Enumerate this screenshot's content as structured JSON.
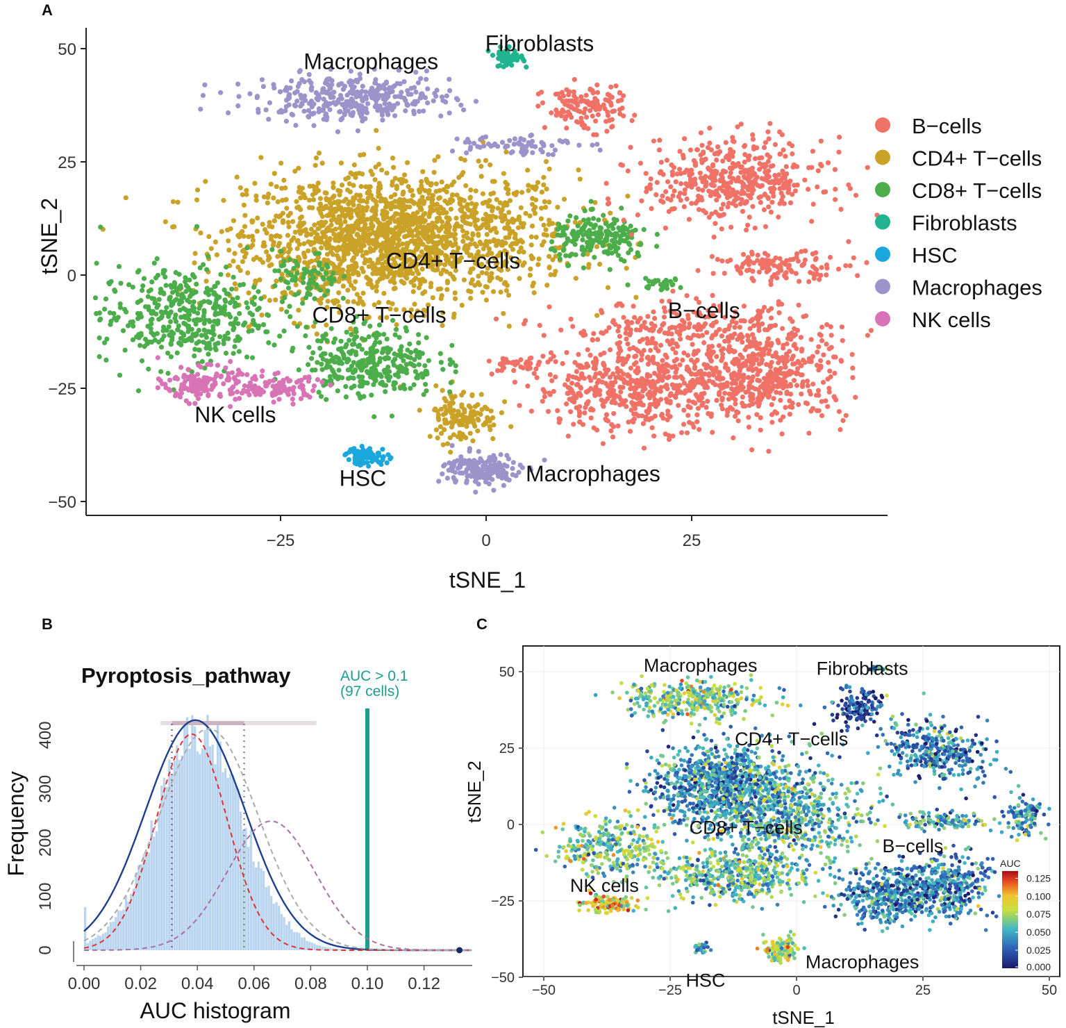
{
  "panels": {
    "a_letter": "A",
    "b_letter": "B",
    "c_letter": "C"
  },
  "colors": {
    "b_cells": "#f07266",
    "cd4": "#c9a227",
    "cd8": "#4cad4b",
    "fibro": "#1fb38f",
    "hsc": "#1aa7dc",
    "macro": "#9b93c9",
    "nk": "#d873b5",
    "threshold": "#1a9e8f",
    "hist_bar": "#b9d4ee",
    "fit_blue": "#1b3f8f",
    "fit_red": "#e03030"
  },
  "chart_data": [
    {
      "panel": "A",
      "type": "scatter",
      "xlabel": "tSNE_1",
      "ylabel": "tSNE_2",
      "xlim": [
        -50,
        50
      ],
      "ylim": [
        -53,
        55
      ],
      "xticks": [
        -25,
        0,
        25
      ],
      "xtick_labels": [
        "−25",
        "0",
        "25"
      ],
      "yticks": [
        50,
        25,
        0,
        -25,
        -50
      ],
      "ytick_labels": [
        "50",
        "25",
        "0",
        "−25",
        "−50"
      ],
      "legend": [
        "B−cells",
        "CD4+ T−cells",
        "CD8+ T−cells",
        "Fibroblasts",
        "HSC",
        "Macrophages",
        "NK cells"
      ],
      "cluster_labels": [
        {
          "text": "Macrophages",
          "x": -14,
          "y": 47
        },
        {
          "text": "Fibroblasts",
          "x": 6.5,
          "y": 51
        },
        {
          "text": "CD4+ T−cells",
          "x": -4,
          "y": 3
        },
        {
          "text": "CD8+ T−cells",
          "x": -13,
          "y": -9
        },
        {
          "text": "B−cells",
          "x": 26.5,
          "y": -8
        },
        {
          "text": "NK cells",
          "x": -30.5,
          "y": -31
        },
        {
          "text": "HSC",
          "x": -15,
          "y": -45
        },
        {
          "text": "Macrophages",
          "x": 13,
          "y": -44
        }
      ],
      "clusters": [
        {
          "type": "CD4+ T−cells",
          "x": -9,
          "y": 9,
          "sx": 10,
          "sy": 7,
          "n": 1300
        },
        {
          "type": "CD4+ T−cells",
          "x": -17,
          "y": 6,
          "sx": 7,
          "sy": 8,
          "n": 500
        },
        {
          "type": "CD4+ T−cells",
          "x": -3,
          "y": -31,
          "sx": 2.2,
          "sy": 3,
          "n": 130
        },
        {
          "type": "CD8+ T−cells",
          "x": -37,
          "y": -9,
          "sx": 5,
          "sy": 5.5,
          "n": 420
        },
        {
          "type": "CD8+ T−cells",
          "x": -14,
          "y": -19,
          "sx": 4,
          "sy": 4,
          "n": 320
        },
        {
          "type": "CD8+ T−cells",
          "x": -22,
          "y": -1,
          "sx": 2,
          "sy": 3,
          "n": 80
        },
        {
          "type": "CD8+ T−cells",
          "x": 14,
          "y": 8,
          "sx": 3,
          "sy": 2.5,
          "n": 200
        },
        {
          "type": "CD8+ T−cells",
          "x": 21,
          "y": -2,
          "sx": 1.5,
          "sy": 0.6,
          "n": 30
        },
        {
          "type": "B−cells",
          "x": 30,
          "y": 21,
          "sx": 5.5,
          "sy": 4.5,
          "n": 450
        },
        {
          "type": "B−cells",
          "x": 12,
          "y": 37,
          "sx": 2.5,
          "sy": 2.5,
          "n": 130
        },
        {
          "type": "B−cells",
          "x": 36,
          "y": 2,
          "sx": 4,
          "sy": 1.5,
          "n": 120
        },
        {
          "type": "B−cells",
          "x": 18,
          "y": -25,
          "sx": 6,
          "sy": 4.5,
          "n": 500
        },
        {
          "type": "B−cells",
          "x": 34,
          "y": -22,
          "sx": 5,
          "sy": 5,
          "n": 450
        },
        {
          "type": "B−cells",
          "x": 25,
          "y": -12,
          "sx": 8,
          "sy": 3,
          "n": 250
        },
        {
          "type": "B−cells",
          "x": 4,
          "y": -20,
          "sx": 2,
          "sy": 1,
          "n": 40
        },
        {
          "type": "Fibroblasts",
          "x": 2.5,
          "y": 48,
          "sx": 1,
          "sy": 1,
          "n": 50
        },
        {
          "type": "HSC",
          "x": -14.5,
          "y": -40,
          "sx": 1.3,
          "sy": 1,
          "n": 80
        },
        {
          "type": "Macrophages",
          "x": -16,
          "y": 39,
          "sx": 6,
          "sy": 2.5,
          "n": 360
        },
        {
          "type": "Macrophages",
          "x": 3,
          "y": 29,
          "sx": 4,
          "sy": 1.2,
          "n": 70
        },
        {
          "type": "Macrophages",
          "x": -0.5,
          "y": -43,
          "sx": 2.3,
          "sy": 1.8,
          "n": 170
        },
        {
          "type": "NK cells",
          "x": -34.5,
          "y": -24,
          "sx": 2.3,
          "sy": 1.8,
          "n": 140
        },
        {
          "type": "NK cells",
          "x": -26,
          "y": -25,
          "sx": 3,
          "sy": 1.5,
          "n": 100
        }
      ]
    },
    {
      "panel": "B",
      "type": "bar",
      "title": "Pyroptosis_pathway",
      "xlabel": "AUC histogram",
      "ylabel": "Frequency",
      "xlim": [
        0,
        0.135
      ],
      "ylim": [
        0,
        450
      ],
      "xticks": [
        0,
        0.02,
        0.04,
        0.06,
        0.08,
        0.1,
        0.12
      ],
      "xtick_labels": [
        "0.00",
        "0.02",
        "0.04",
        "0.06",
        "0.08",
        "0.10",
        "0.12"
      ],
      "yticks": [
        0,
        100,
        200,
        300,
        400
      ],
      "ytick_labels": [
        "0",
        "100",
        "200",
        "300",
        "400"
      ],
      "threshold": 0.1,
      "threshold_label": "AUC > 0.1",
      "threshold_cells": "(97 cells)",
      "vertical_lines": [
        0.031,
        0.0565
      ],
      "max_point": 0.1325,
      "fits": [
        {
          "name": "total",
          "mean": 0.0393,
          "sd": 0.0176,
          "amp": 428,
          "style": "solid",
          "color": "#1b3f8f"
        },
        {
          "name": "component-1",
          "mean": 0.038,
          "sd": 0.0125,
          "amp": 402,
          "style": "dashed",
          "color": "#e03030"
        },
        {
          "name": "component-2",
          "mean": 0.066,
          "sd": 0.0155,
          "amp": 240,
          "style": "dashed",
          "color": "#a86fa3"
        },
        {
          "name": "alternative",
          "mean": 0.044,
          "sd": 0.0175,
          "amp": 412,
          "style": "dashed",
          "color": "#aaaaaa"
        }
      ],
      "histogram": {
        "bin_width": 0.0009,
        "mean": 0.0405,
        "sd": 0.0152,
        "peak": 420,
        "spike_at_zero": 80
      }
    },
    {
      "panel": "C",
      "type": "scatter",
      "xlabel": "tSNE_1",
      "ylabel": "tSNE_2",
      "xlim": [
        -55,
        52
      ],
      "ylim": [
        -52,
        57
      ],
      "xticks": [
        -50,
        -25,
        0,
        25,
        50
      ],
      "xtick_labels": [
        "−50",
        "−25",
        "0",
        "25",
        "50"
      ],
      "yticks": [
        50,
        25,
        0,
        -25,
        -50
      ],
      "ytick_labels": [
        "50",
        "25",
        "0",
        "−25",
        "−50"
      ],
      "colorbar_title": "AUC",
      "colorbar_ticks": [
        0.125,
        0.1,
        0.075,
        0.05,
        0.025,
        0
      ],
      "colorbar_labels": [
        "0.125",
        "0.100",
        "0.075",
        "0.050",
        "0.025",
        "0.000"
      ],
      "cluster_labels": [
        {
          "text": "Macrophages",
          "x": -19,
          "y": 52
        },
        {
          "text": "Fibroblasts",
          "x": 13,
          "y": 51
        },
        {
          "text": "CD4+ T−cells",
          "x": -1,
          "y": 28
        },
        {
          "text": "CD8+ T−cells",
          "x": -10,
          "y": -1
        },
        {
          "text": "B−cells",
          "x": 23,
          "y": -7
        },
        {
          "text": "NK cells",
          "x": -38,
          "y": -20
        },
        {
          "text": "HSC",
          "x": -18,
          "y": -51
        },
        {
          "text": "Macrophages",
          "x": 13,
          "y": -45
        }
      ],
      "clusters": [
        {
          "x": -15,
          "y": 13,
          "sx": 7,
          "sy": 6.5,
          "n": 900,
          "auc": 0.04
        },
        {
          "x": -2,
          "y": 3,
          "sx": 8,
          "sy": 7,
          "n": 650,
          "auc": 0.05
        },
        {
          "x": -12,
          "y": -17,
          "sx": 7,
          "sy": 4,
          "n": 450,
          "auc": 0.055
        },
        {
          "x": -37,
          "y": -8,
          "sx": 5,
          "sy": 5,
          "n": 300,
          "auc": 0.06
        },
        {
          "x": -37,
          "y": -26,
          "sx": 3,
          "sy": 1.4,
          "n": 120,
          "auc": 0.085
        },
        {
          "x": -20,
          "y": 41,
          "sx": 7,
          "sy": 3,
          "n": 350,
          "auc": 0.06
        },
        {
          "x": 12,
          "y": 38,
          "sx": 2.5,
          "sy": 3,
          "n": 140,
          "auc": 0.02
        },
        {
          "x": 16,
          "y": 51,
          "sx": 0.8,
          "sy": 0.5,
          "n": 20,
          "auc": 0.035
        },
        {
          "x": 28,
          "y": 24,
          "sx": 5,
          "sy": 5,
          "n": 350,
          "auc": 0.035
        },
        {
          "x": 29,
          "y": 1,
          "sx": 4,
          "sy": 1.5,
          "n": 120,
          "auc": 0.045
        },
        {
          "x": 45,
          "y": 3,
          "sx": 2,
          "sy": 3,
          "n": 100,
          "auc": 0.035
        },
        {
          "x": 18,
          "y": -23,
          "sx": 5,
          "sy": 4.5,
          "n": 400,
          "auc": 0.035
        },
        {
          "x": 30,
          "y": -20,
          "sx": 4,
          "sy": 5,
          "n": 350,
          "auc": 0.035
        },
        {
          "x": -19,
          "y": -40,
          "sx": 0.8,
          "sy": 1.2,
          "n": 25,
          "auc": 0.045
        },
        {
          "x": -3,
          "y": -41,
          "sx": 1.8,
          "sy": 2,
          "n": 120,
          "auc": 0.07
        }
      ]
    }
  ]
}
